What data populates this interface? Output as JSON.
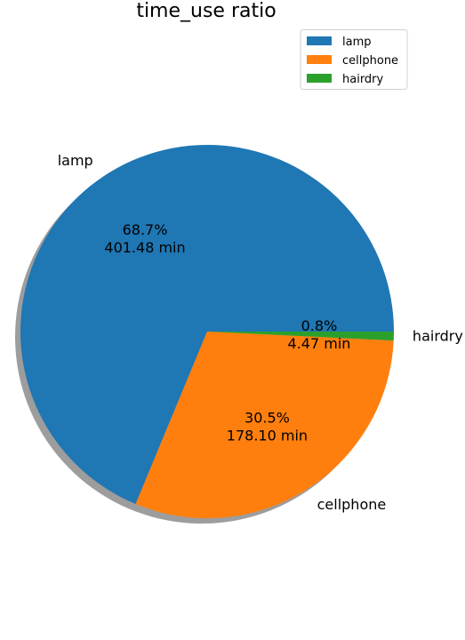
{
  "chart_data": {
    "type": "pie",
    "title": "time_use ratio",
    "unit": "min",
    "slices": [
      {
        "label": "lamp",
        "value": 401.48,
        "percent": "68.7%",
        "value_label": "401.48 min",
        "color": "#1f77b4"
      },
      {
        "label": "cellphone",
        "value": 178.1,
        "percent": "30.5%",
        "value_label": "178.10 min",
        "color": "#ff7f0e"
      },
      {
        "label": "hairdry",
        "value": 4.47,
        "percent": "0.8%",
        "value_label": "4.47 min",
        "color": "#2ca02c"
      }
    ],
    "start_angle_deg": 0,
    "direction": "counterclockwise",
    "shadow": true,
    "legend": {
      "placement": "top-right",
      "entries": [
        "lamp",
        "cellphone",
        "hairdry"
      ]
    }
  }
}
